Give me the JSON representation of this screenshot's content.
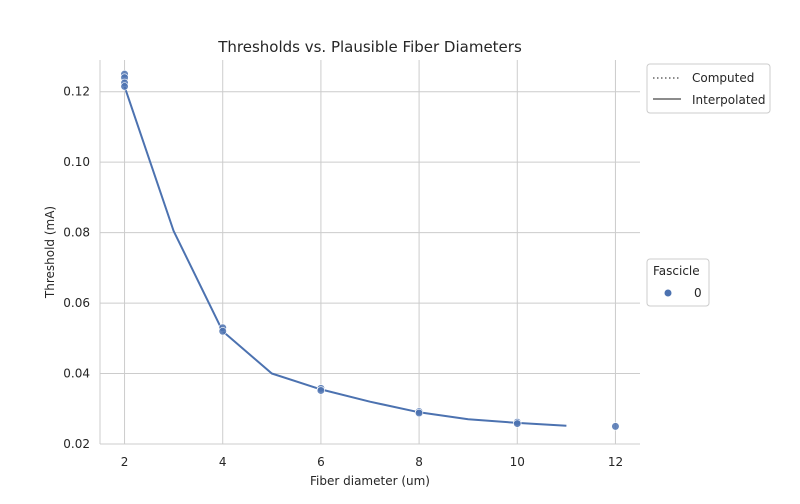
{
  "chart_data": {
    "type": "line",
    "title": "Thresholds vs. Plausible Fiber Diameters",
    "xlabel": "Fiber diameter (um)",
    "ylabel": "Threshold (mA)",
    "xlim": [
      1.5,
      12.5
    ],
    "ylim": [
      0.02,
      0.129
    ],
    "x_ticks": [
      2,
      4,
      6,
      8,
      10,
      12
    ],
    "x_tick_labels": [
      "2",
      "4",
      "6",
      "8",
      "10",
      "12"
    ],
    "y_ticks": [
      0.02,
      0.04,
      0.06,
      0.08,
      0.1,
      0.12
    ],
    "y_tick_labels": [
      "0.02",
      "0.04",
      "0.06",
      "0.08",
      "0.10",
      "0.12"
    ],
    "grid": true,
    "line_color": "#4c72b0",
    "series": [
      {
        "name": "Interpolated",
        "style": "solid",
        "x": [
          2,
          3,
          4,
          5,
          6,
          7,
          8,
          9,
          10,
          11
        ],
        "y": [
          0.1215,
          0.0805,
          0.052,
          0.04,
          0.0355,
          0.032,
          0.029,
          0.027,
          0.026,
          0.0252
        ]
      },
      {
        "name": "Computed",
        "style": "dotted",
        "x": [],
        "y": []
      }
    ],
    "scatter": {
      "name": "0",
      "color": "#4c72b0",
      "x": [
        2,
        2,
        2,
        2,
        4,
        4,
        6,
        6,
        8,
        8,
        10,
        10,
        12
      ],
      "y": [
        0.125,
        0.124,
        0.1225,
        0.1215,
        0.053,
        0.052,
        0.0358,
        0.0352,
        0.0292,
        0.0288,
        0.0262,
        0.0258,
        0.025
      ]
    },
    "legends": [
      {
        "position": "top-right-outside",
        "entries": [
          {
            "label": "Computed",
            "style": "dotted"
          },
          {
            "label": "Interpolated",
            "style": "solid"
          }
        ]
      },
      {
        "position": "right-outside",
        "title": "Fascicle",
        "entries": [
          {
            "label": "0",
            "marker": "circle",
            "color": "#4c72b0"
          }
        ]
      }
    ]
  }
}
